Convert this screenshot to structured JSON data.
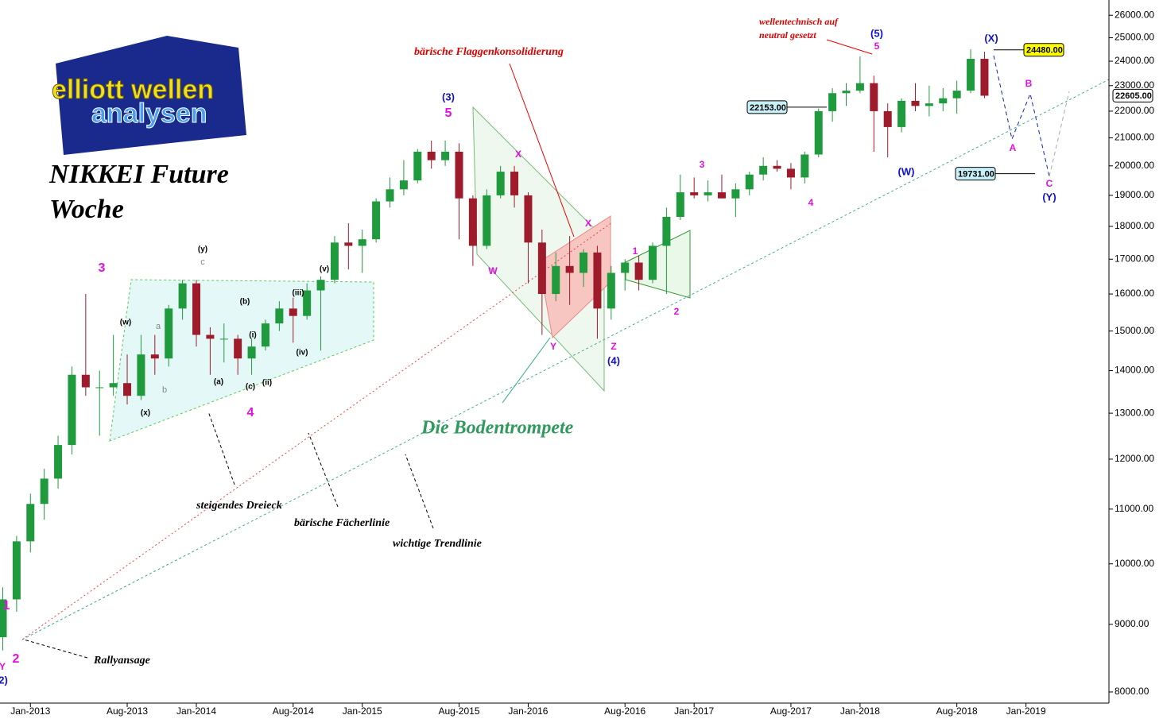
{
  "logo": {
    "line1": "elliott wellen",
    "line2": "analysen"
  },
  "chart_data": {
    "type": "candlestick",
    "title": "NIKKEI Future",
    "subtitle": "Woche",
    "log_scale": true,
    "xlim": [
      -0.2,
      80
    ],
    "ylim": [
      7846,
      26700
    ],
    "xticks": [
      {
        "value": 2,
        "label": "Jan-2013"
      },
      {
        "value": 9,
        "label": "Aug-2013"
      },
      {
        "value": 14,
        "label": "Jan-2014"
      },
      {
        "value": 21,
        "label": "Aug-2014"
      },
      {
        "value": 26,
        "label": "Jan-2015"
      },
      {
        "value": 33,
        "label": "Aug-2015"
      },
      {
        "value": 38,
        "label": "Jan-2016"
      },
      {
        "value": 45,
        "label": "Aug-2016"
      },
      {
        "value": 50,
        "label": "Jan-2017"
      },
      {
        "value": 57,
        "label": "Aug-2017"
      },
      {
        "value": 62,
        "label": "Jan-2018"
      },
      {
        "value": 69,
        "label": "Aug-2018"
      },
      {
        "value": 74,
        "label": "Jan-2019"
      }
    ],
    "yticks": [
      {
        "value": 8000,
        "label": "8000.00"
      },
      {
        "value": 9000,
        "label": "9000.00"
      },
      {
        "value": 10000,
        "label": "10000.00"
      },
      {
        "value": 11000,
        "label": "11000.00"
      },
      {
        "value": 12000,
        "label": "12000.00"
      },
      {
        "value": 13000,
        "label": "13000.00"
      },
      {
        "value": 14000,
        "label": "14000.00"
      },
      {
        "value": 15000,
        "label": "15000.00"
      },
      {
        "value": 16000,
        "label": "16000.00"
      },
      {
        "value": 17000,
        "label": "17000.00"
      },
      {
        "value": 18000,
        "label": "18000.00"
      },
      {
        "value": 19000,
        "label": "19000.00"
      },
      {
        "value": 20000,
        "label": "20000.00"
      },
      {
        "value": 21000,
        "label": "21000.00"
      },
      {
        "value": 22000,
        "label": "22000.00"
      },
      {
        "value": 23000,
        "label": "23000.00"
      },
      {
        "value": 24000,
        "label": "24000.00"
      },
      {
        "value": 25000,
        "label": "25000.00"
      },
      {
        "value": 26000,
        "label": "26000.00"
      }
    ],
    "up_color": "#1f9a3c",
    "down_color": "#9e1b2c",
    "price_labels": [
      {
        "value": 24480,
        "label": "24480.00",
        "color": "#ffff00"
      },
      {
        "value": 22153,
        "label": "22153.00",
        "color": "#c8f0f8"
      },
      {
        "value": 19731,
        "label": "19731.00",
        "color": "#c8f0f8"
      },
      {
        "value": 22605,
        "label": "22605.00",
        "color": "#ffffff"
      }
    ],
    "series": [
      {
        "x": [
          0,
          1,
          2,
          3,
          4,
          5,
          6,
          7,
          8,
          9,
          10,
          11,
          12,
          13,
          14,
          15,
          16,
          17,
          18,
          19,
          20,
          21,
          22,
          23,
          24,
          25,
          26,
          27,
          28,
          29,
          30,
          31,
          32,
          33,
          34,
          35,
          36,
          37,
          38,
          39,
          40,
          41,
          42,
          43,
          44,
          45,
          46,
          47,
          48,
          49,
          50,
          51,
          52,
          53,
          54,
          55,
          56,
          57,
          58,
          59,
          60,
          61,
          62,
          63,
          64,
          65,
          66,
          67,
          68,
          69,
          70,
          71
        ],
        "ohlc": [
          [
            8800,
            9600,
            8600,
            9400
          ],
          [
            9400,
            10500,
            9200,
            10400
          ],
          [
            10400,
            11300,
            10200,
            11100
          ],
          [
            11100,
            11800,
            10800,
            11600
          ],
          [
            11600,
            12500,
            11400,
            12300
          ],
          [
            12300,
            14100,
            12100,
            13900
          ],
          [
            13900,
            16000,
            13400,
            13600
          ],
          [
            13600,
            14000,
            12500,
            13600
          ],
          [
            13600,
            14900,
            13400,
            13700
          ],
          [
            13700,
            14400,
            13200,
            13400
          ],
          [
            13400,
            14900,
            13300,
            14400
          ],
          [
            14400,
            14900,
            13900,
            14300
          ],
          [
            14300,
            15700,
            14100,
            15600
          ],
          [
            15600,
            16400,
            15300,
            16300
          ],
          [
            16300,
            16400,
            14600,
            14900
          ],
          [
            14900,
            15100,
            13900,
            14800
          ],
          [
            14800,
            15200,
            14200,
            14800
          ],
          [
            14800,
            14900,
            13900,
            14300
          ],
          [
            14300,
            14800,
            13900,
            14600
          ],
          [
            14600,
            15300,
            14500,
            15200
          ],
          [
            15200,
            15800,
            15000,
            15600
          ],
          [
            15600,
            15900,
            14700,
            15400
          ],
          [
            15400,
            16300,
            15300,
            16100
          ],
          [
            16100,
            16500,
            14500,
            16400
          ],
          [
            16400,
            17700,
            16300,
            17500
          ],
          [
            17500,
            18100,
            16700,
            17400
          ],
          [
            17400,
            17900,
            16600,
            17600
          ],
          [
            17600,
            18900,
            17500,
            18800
          ],
          [
            18800,
            19600,
            18600,
            19200
          ],
          [
            19200,
            20200,
            19000,
            19500
          ],
          [
            19500,
            20600,
            19400,
            20500
          ],
          [
            20500,
            20900,
            19900,
            20200
          ],
          [
            20200,
            20900,
            20000,
            20500
          ],
          [
            20500,
            20800,
            17600,
            18900
          ],
          [
            18900,
            19000,
            16800,
            17400
          ],
          [
            17400,
            19200,
            17300,
            19000
          ],
          [
            19000,
            20000,
            18900,
            19800
          ],
          [
            19800,
            20000,
            18600,
            19000
          ],
          [
            19000,
            19100,
            16300,
            17500
          ],
          [
            17500,
            17900,
            14900,
            16000
          ],
          [
            16000,
            17200,
            15800,
            16800
          ],
          [
            16800,
            17700,
            15700,
            16600
          ],
          [
            16600,
            17300,
            16200,
            17200
          ],
          [
            17200,
            17400,
            14800,
            15600
          ],
          [
            15600,
            16800,
            15300,
            16600
          ],
          [
            16600,
            17000,
            16100,
            16900
          ],
          [
            16900,
            17100,
            16100,
            16400
          ],
          [
            16400,
            17500,
            16300,
            17400
          ],
          [
            17400,
            18600,
            16000,
            18300
          ],
          [
            18300,
            19700,
            18200,
            19100
          ],
          [
            19100,
            19600,
            18900,
            19000
          ],
          [
            19000,
            19500,
            18800,
            19100
          ],
          [
            19100,
            19700,
            18900,
            18900
          ],
          [
            18900,
            19400,
            18300,
            19200
          ],
          [
            19200,
            19800,
            19000,
            19700
          ],
          [
            19700,
            20300,
            19500,
            20000
          ],
          [
            20000,
            20200,
            19800,
            19900
          ],
          [
            19900,
            20100,
            19200,
            19600
          ],
          [
            19600,
            20500,
            19400,
            20400
          ],
          [
            20400,
            22100,
            20300,
            22000
          ],
          [
            22000,
            22900,
            21600,
            22700
          ],
          [
            22700,
            23100,
            22200,
            22800
          ],
          [
            22800,
            24200,
            22700,
            23100
          ],
          [
            23100,
            23400,
            20500,
            22000
          ],
          [
            22000,
            22300,
            20300,
            21400
          ],
          [
            21400,
            22500,
            21200,
            22400
          ],
          [
            22400,
            23100,
            22000,
            22200
          ],
          [
            22200,
            23000,
            21800,
            22300
          ],
          [
            22300,
            22900,
            22000,
            22500
          ],
          [
            22500,
            23200,
            21900,
            22800
          ],
          [
            22800,
            24500,
            22700,
            24100
          ],
          [
            24100,
            24400,
            22500,
            22600
          ]
        ]
      }
    ],
    "annotations": [
      "bärische Flaggenkonsolidierung",
      "wellentechnisch auf",
      "neutral gesetzt",
      "Die Bodentrompete",
      "steigendes Dreieck",
      "bärische Fächerlinie",
      "wichtige Trendlinie",
      "Rallyansage",
      "3",
      "4",
      "5",
      "(3)",
      "(4)",
      "(5)",
      "(X)",
      "(W)",
      "(Y)",
      "1",
      "2",
      "W",
      "X",
      "X",
      "Y",
      "Z",
      "A",
      "B",
      "C",
      "3",
      "4",
      "1",
      "2",
      "5",
      "(w)",
      "(x)",
      "(y)",
      "(a)",
      "(b)",
      "(c)",
      "(i)",
      "(ii)",
      "(iii)",
      "(iv)",
      "(v)",
      "a",
      "b",
      "c",
      "Y",
      "2)"
    ]
  }
}
